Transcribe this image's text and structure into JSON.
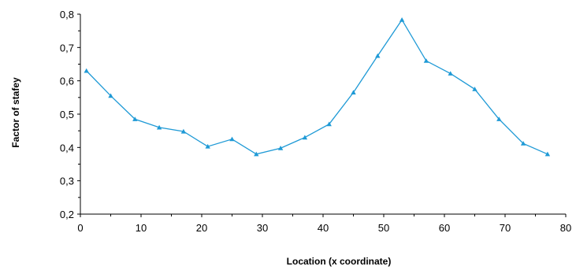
{
  "chart_data": {
    "type": "line",
    "title": "",
    "xlabel": "Location (x coordinate)",
    "ylabel": "Factor of stafey",
    "xlim": [
      0,
      80
    ],
    "ylim": [
      0.2,
      0.8
    ],
    "x_ticks": [
      "0",
      "10",
      "20",
      "30",
      "40",
      "50",
      "60",
      "70",
      "80"
    ],
    "y_ticks": [
      "0,2",
      "0,3",
      "0,4",
      "0,5",
      "0,6",
      "0,7",
      "0,8"
    ],
    "grid": false,
    "legend": "none",
    "series": [
      {
        "color": "#1f9ad6",
        "marker": "triangle",
        "x": [
          1,
          5,
          9,
          13,
          17,
          21,
          25,
          29,
          33,
          37,
          41,
          45,
          49,
          53,
          57,
          61,
          65,
          69,
          73,
          77
        ],
        "y": [
          0.63,
          0.555,
          0.485,
          0.46,
          0.448,
          0.403,
          0.425,
          0.38,
          0.398,
          0.43,
          0.47,
          0.565,
          0.675,
          0.783,
          0.66,
          0.622,
          0.575,
          0.485,
          0.412,
          0.38
        ]
      }
    ]
  }
}
